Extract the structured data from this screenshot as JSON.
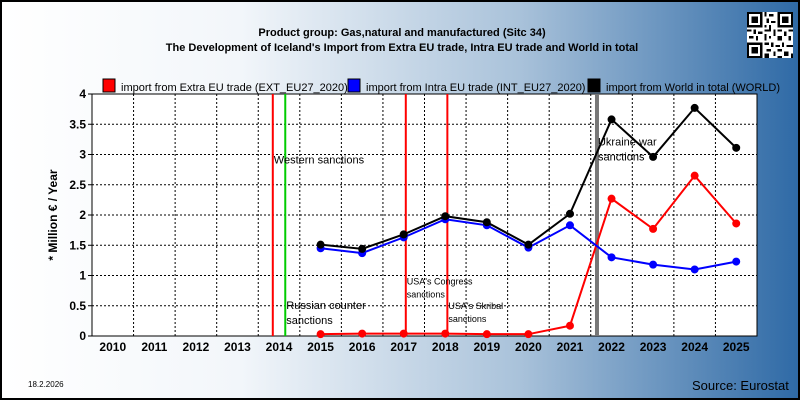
{
  "header": {
    "title_line1": "Product group: Gas,natural and manufactured (Sitc 34)",
    "title_line2": "The Development of Iceland's Import from Extra EU trade, Intra EU trade and World in total"
  },
  "footer": {
    "date": "18.2.2026",
    "source": "Source: Eurostat"
  },
  "icons": {
    "qr": "qr-code-icon"
  },
  "chart_data": {
    "type": "line",
    "ylabel": "* Million € / Year",
    "xlabel": "",
    "ylim": [
      0,
      4
    ],
    "yticks": [
      "0",
      "0.5",
      "1",
      "1.5",
      "2",
      "2.5",
      "3",
      "3.5",
      "4"
    ],
    "categories": [
      "2010",
      "2011",
      "2012",
      "2013",
      "2014",
      "2015",
      "2016",
      "2017",
      "2018",
      "2019",
      "2020",
      "2021",
      "2022",
      "2023",
      "2024",
      "2025"
    ],
    "grid": true,
    "legend_position": "top",
    "series": [
      {
        "name": "import from Extra EU trade (EXT_EU27_2020)",
        "color": "#ff0000",
        "values": [
          null,
          null,
          null,
          null,
          null,
          0.03,
          0.04,
          0.04,
          0.04,
          0.03,
          0.03,
          0.17,
          2.27,
          1.77,
          2.65,
          1.86
        ]
      },
      {
        "name": "import from Intra EU trade (INT_EU27_2020)",
        "color": "#0000ff",
        "values": [
          null,
          null,
          null,
          null,
          null,
          1.45,
          1.37,
          1.63,
          1.93,
          1.83,
          1.46,
          1.83,
          1.3,
          1.18,
          1.1,
          1.23
        ]
      },
      {
        "name": "import from World in total (WORLD)",
        "color": "#000000",
        "values": [
          null,
          null,
          null,
          null,
          null,
          1.51,
          1.44,
          1.68,
          1.98,
          1.88,
          1.51,
          2.02,
          3.58,
          2.96,
          3.77,
          3.11
        ]
      }
    ],
    "events": [
      {
        "position": 2013.85,
        "color": "#ff0000",
        "label": "Western sanctions",
        "label_size": "normal",
        "label_y": 2.85
      },
      {
        "position": 2014.15,
        "color": "#00cc00",
        "label": "Russian counter sanctions",
        "label_size": "normal",
        "label_y": 0.45
      },
      {
        "position": 2017.05,
        "color": "#ff0000",
        "label": "USA's Congress sanctions",
        "label_size": "small",
        "label_y": 0.85
      },
      {
        "position": 2018.05,
        "color": "#ff0000",
        "label": "USA's Skribal sanctions",
        "label_size": "small",
        "label_y": 0.45
      },
      {
        "position": 2021.65,
        "color": "#777777",
        "label": "Ukraine war sanctions",
        "label_size": "normal",
        "label_y": 3.15
      }
    ]
  }
}
